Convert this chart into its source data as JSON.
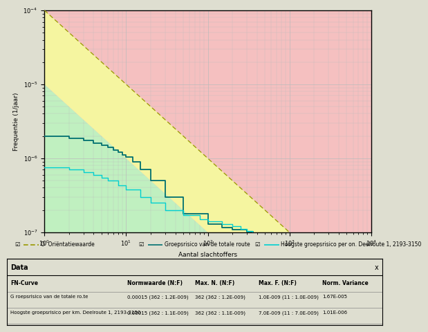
{
  "title": "",
  "xlabel": "Aantal slachtoffers",
  "ylabel": "Frequentie (1/jaar)",
  "bg_color": "#deded0",
  "plot_bg_pink": "#f5c0c0",
  "plot_bg_yellow": "#f5f5a0",
  "plot_bg_green": "#c0f0c0",
  "grid_color": "#bbbbbb",
  "orientation_line_color": "#999900",
  "fN_dark_teal": "#007070",
  "fN_light_cyan": "#00d0d0",
  "legend_check_color": "#333333",
  "legend_entries": [
    "O  Oriëntatiewaarde",
    "Groepsrisico van de totale route",
    "Hoogste groepsrisico per on. Deelroute 1, 2193-3150"
  ],
  "table_header": [
    "FN-Curve",
    "Normwaarde (N:F)",
    "Max. N. (N:F)",
    "Max. F. (N:F)",
    "Norm. Variance"
  ],
  "table_rows": [
    [
      "G roepsrisico van de totale ro.te",
      "0.00015 (362 : 1.2E-009)",
      "362 (362 : 1.2E-009)",
      "1.0E-009 (11 : 1.0E-009)",
      "1.67E-005"
    ],
    [
      "Hoogste groepsrisico per km. Deelroute 1, 2193-3150",
      "0.00015 (362 : 1.1E-009)",
      "362 (362 : 1.1E-009)",
      "7.0E-009 (11 : 7.0E-009)",
      "1.01E-006"
    ]
  ],
  "data_section_label": "Data"
}
